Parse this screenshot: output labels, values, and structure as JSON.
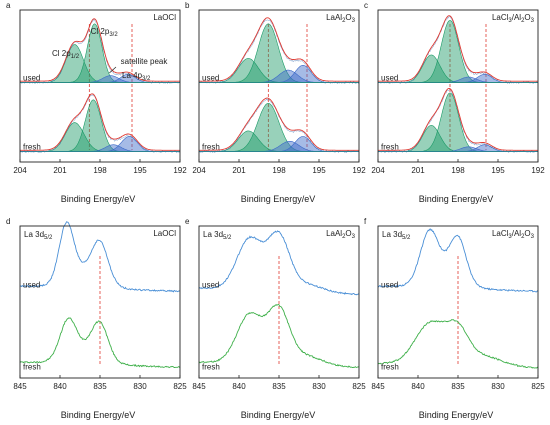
{
  "colors": {
    "envelope": "#e03a32",
    "peak_green": "#1a9a66",
    "peak_blue": "#3a68c8",
    "cl_fresh": "#4aa8a0",
    "cl_used": "#4aa8a0",
    "la_used": "#4a8fd6",
    "la_fresh": "#3fb04a",
    "dash": "#e03a32",
    "axis": "#222222"
  },
  "chart_data": [
    {
      "id": "a",
      "type": "line",
      "panel_label": "a",
      "sample": "LaOCl",
      "xlabel": "Binding Energy/eV",
      "xlim": [
        204,
        192
      ],
      "xticks": [
        204,
        201,
        198,
        195,
        192
      ],
      "curve_labels": [
        "used",
        "fresh"
      ],
      "annotations": [
        {
          "text": "Cl 2p",
          "sub": "1/2",
          "x": 200.8
        },
        {
          "text": "Cl 2p",
          "sub": "3/2",
          "x": 198.4
        },
        {
          "text": "satellite peak",
          "sub": "",
          "x": 196.4
        },
        {
          "text": "La 4p",
          "sub": "3/2",
          "x": 195.4
        }
      ],
      "dashed_x": [
        198.8,
        195.6
      ],
      "traces": [
        {
          "name": "used",
          "offset": 1.0,
          "peaks": [
            {
              "c": 199.9,
              "h": 0.55,
              "w": 0.65,
              "fill": "green"
            },
            {
              "c": 198.4,
              "h": 0.85,
              "w": 0.55,
              "fill": "green"
            },
            {
              "c": 197.2,
              "h": 0.1,
              "w": 0.6,
              "fill": "blue"
            },
            {
              "c": 195.9,
              "h": 0.12,
              "w": 0.55,
              "fill": "blue"
            }
          ]
        },
        {
          "name": "fresh",
          "offset": 0.0,
          "peaks": [
            {
              "c": 199.9,
              "h": 0.42,
              "w": 0.7,
              "fill": "green"
            },
            {
              "c": 198.5,
              "h": 0.75,
              "w": 0.6,
              "fill": "green"
            },
            {
              "c": 197.0,
              "h": 0.1,
              "w": 0.6,
              "fill": "blue"
            },
            {
              "c": 195.8,
              "h": 0.22,
              "w": 0.6,
              "fill": "blue"
            }
          ]
        }
      ]
    },
    {
      "id": "b",
      "type": "line",
      "panel_label": "b",
      "sample": "LaAl",
      "sample_sub": "2",
      "sample_tail": "O",
      "sample_sub2": "3",
      "xlabel": "Binding Energy/eV",
      "xlim": [
        204,
        192
      ],
      "xticks": [
        204,
        201,
        198,
        195,
        192
      ],
      "curve_labels": [
        "used",
        "fresh"
      ],
      "annotations": [],
      "dashed_x": [
        198.8,
        195.9
      ],
      "traces": [
        {
          "name": "used",
          "offset": 1.0,
          "peaks": [
            {
              "c": 200.3,
              "h": 0.35,
              "w": 0.75,
              "fill": "green"
            },
            {
              "c": 198.8,
              "h": 0.85,
              "w": 0.75,
              "fill": "green"
            },
            {
              "c": 197.3,
              "h": 0.18,
              "w": 0.7,
              "fill": "blue"
            },
            {
              "c": 196.2,
              "h": 0.25,
              "w": 0.6,
              "fill": "blue"
            }
          ]
        },
        {
          "name": "fresh",
          "offset": 0.0,
          "peaks": [
            {
              "c": 200.3,
              "h": 0.3,
              "w": 0.75,
              "fill": "green"
            },
            {
              "c": 198.8,
              "h": 0.7,
              "w": 0.8,
              "fill": "green"
            },
            {
              "c": 197.2,
              "h": 0.15,
              "w": 0.7,
              "fill": "blue"
            },
            {
              "c": 196.2,
              "h": 0.22,
              "w": 0.6,
              "fill": "blue"
            }
          ]
        }
      ]
    },
    {
      "id": "c",
      "type": "line",
      "panel_label": "c",
      "sample": "LaCl",
      "sample_sub": "3",
      "sample_tail": "/Al",
      "sample_sub2": "2",
      "sample_tail2": "O",
      "sample_sub3": "3",
      "xlabel": "Binding Energy/eV",
      "xlim": [
        204,
        192
      ],
      "xticks": [
        204,
        201,
        198,
        195,
        192
      ],
      "curve_labels": [
        "used",
        "fresh"
      ],
      "annotations": [],
      "dashed_x": [
        198.6,
        195.9
      ],
      "traces": [
        {
          "name": "used",
          "offset": 1.0,
          "peaks": [
            {
              "c": 200.0,
              "h": 0.4,
              "w": 0.65,
              "fill": "green"
            },
            {
              "c": 198.6,
              "h": 0.9,
              "w": 0.65,
              "fill": "green"
            },
            {
              "c": 197.2,
              "h": 0.08,
              "w": 0.6,
              "fill": "blue"
            },
            {
              "c": 196.0,
              "h": 0.12,
              "w": 0.55,
              "fill": "blue"
            }
          ]
        },
        {
          "name": "fresh",
          "offset": 0.0,
          "peaks": [
            {
              "c": 200.0,
              "h": 0.38,
              "w": 0.65,
              "fill": "green"
            },
            {
              "c": 198.6,
              "h": 0.85,
              "w": 0.65,
              "fill": "green"
            },
            {
              "c": 197.2,
              "h": 0.07,
              "w": 0.6,
              "fill": "blue"
            },
            {
              "c": 196.0,
              "h": 0.1,
              "w": 0.55,
              "fill": "blue"
            }
          ]
        }
      ]
    },
    {
      "id": "d",
      "type": "line",
      "panel_label": "d",
      "sample": "LaOCl",
      "region": "La 3d",
      "region_sub": "5/2",
      "xlabel": "Binding Energy/eV",
      "xlim": [
        845,
        825
      ],
      "xticks": [
        845,
        840,
        835,
        830,
        825
      ],
      "curve_labels": [
        "used",
        "fresh"
      ],
      "dashed_x": [
        835.0
      ],
      "traces": [
        {
          "name": "used",
          "offset": 1.05,
          "peaks": [
            {
              "c": 839.2,
              "h": 0.75,
              "w": 0.9
            },
            {
              "c": 835.0,
              "h": 0.5,
              "w": 1.0
            },
            {
              "c": 837.0,
              "h": 0.25,
              "w": 2.2
            }
          ],
          "base": 0.12
        },
        {
          "name": "fresh",
          "offset": 0.0,
          "peaks": [
            {
              "c": 839.0,
              "h": 0.48,
              "w": 1.0
            },
            {
              "c": 835.0,
              "h": 0.45,
              "w": 1.0
            },
            {
              "c": 837.0,
              "h": 0.22,
              "w": 2.2
            }
          ],
          "base": 0.12
        }
      ]
    },
    {
      "id": "e",
      "type": "line",
      "panel_label": "e",
      "sample": "LaAl",
      "sample_sub": "2",
      "sample_tail": "O",
      "sample_sub2": "3",
      "region": "La 3d",
      "region_sub": "5/2",
      "xlabel": "Binding Energy/eV",
      "xlim": [
        845,
        825
      ],
      "xticks": [
        845,
        840,
        835,
        830,
        825
      ],
      "curve_labels": [
        "used",
        "fresh"
      ],
      "dashed_x": [
        835.0
      ],
      "traces": [
        {
          "name": "used",
          "offset": 1.0,
          "peaks": [
            {
              "c": 838.8,
              "h": 0.55,
              "w": 1.5
            },
            {
              "c": 835.0,
              "h": 0.62,
              "w": 1.3
            },
            {
              "c": 837.0,
              "h": 0.22,
              "w": 2.4
            },
            {
              "c": 831.5,
              "h": 0.1,
              "w": 2.0
            }
          ],
          "base": 0.14
        },
        {
          "name": "fresh",
          "offset": 0.0,
          "peaks": [
            {
              "c": 838.8,
              "h": 0.52,
              "w": 1.5
            },
            {
              "c": 835.0,
              "h": 0.62,
              "w": 1.3
            },
            {
              "c": 837.0,
              "h": 0.22,
              "w": 2.4
            },
            {
              "c": 831.5,
              "h": 0.12,
              "w": 2.0
            }
          ],
          "base": 0.12
        }
      ]
    },
    {
      "id": "f",
      "type": "line",
      "panel_label": "f",
      "sample": "LaCl",
      "sample_sub": "3",
      "sample_tail": "/Al",
      "sample_sub2": "2",
      "sample_tail2": "O",
      "sample_sub3": "3",
      "region": "La 3d",
      "region_sub": "5/2",
      "xlabel": "Binding Energy/eV",
      "xlim": [
        845,
        825
      ],
      "xticks": [
        845,
        840,
        835,
        830,
        825
      ],
      "curve_labels": [
        "used",
        "fresh"
      ],
      "dashed_x": [
        835.0
      ],
      "traces": [
        {
          "name": "used",
          "offset": 1.05,
          "peaks": [
            {
              "c": 838.6,
              "h": 0.62,
              "w": 1.1
            },
            {
              "c": 835.0,
              "h": 0.55,
              "w": 1.0
            },
            {
              "c": 836.8,
              "h": 0.25,
              "w": 2.2
            }
          ],
          "base": 0.12
        },
        {
          "name": "fresh",
          "offset": 0.0,
          "peaks": [
            {
              "c": 838.6,
              "h": 0.4,
              "w": 1.8
            },
            {
              "c": 835.0,
              "h": 0.35,
              "w": 1.3
            },
            {
              "c": 837.0,
              "h": 0.22,
              "w": 2.6
            },
            {
              "c": 831.5,
              "h": 0.12,
              "w": 2.2
            }
          ],
          "base": 0.1
        }
      ]
    }
  ]
}
